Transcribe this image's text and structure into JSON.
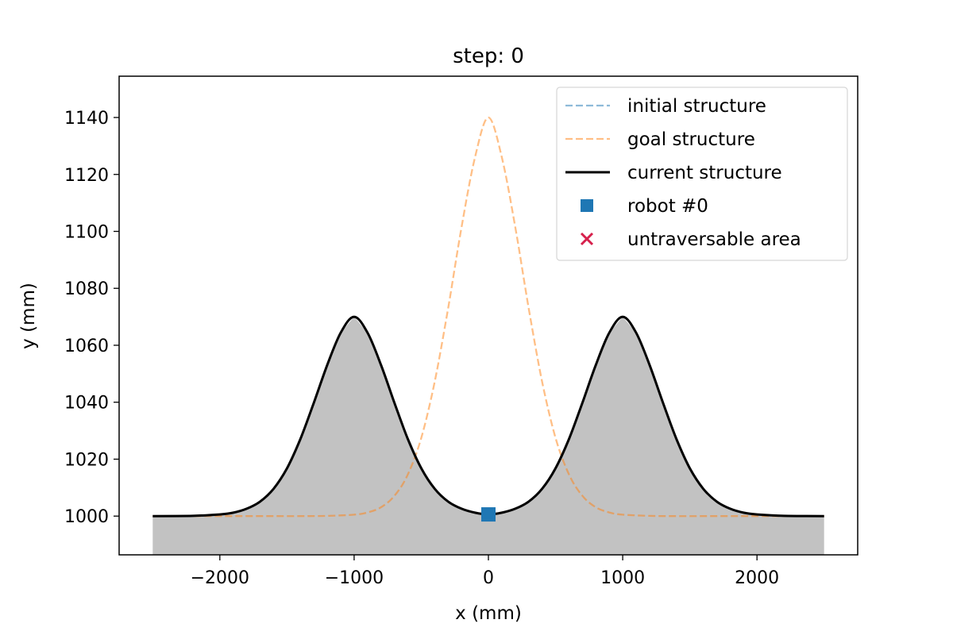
{
  "chart_data": {
    "type": "line",
    "title": "step: 0",
    "xlabel": "x (mm)",
    "ylabel": "y (mm)",
    "xlim": [
      -2750,
      2750
    ],
    "ylim": [
      986.4,
      1154.5
    ],
    "grid": false,
    "x_ticks": [
      -2000,
      -1000,
      0,
      1000,
      2000
    ],
    "x_tick_labels": [
      "−2000",
      "−1000",
      "0",
      "1000",
      "2000"
    ],
    "y_ticks": [
      1000,
      1020,
      1040,
      1060,
      1080,
      1100,
      1120,
      1140
    ],
    "y_tick_labels": [
      "1000",
      "1020",
      "1040",
      "1060",
      "1080",
      "1100",
      "1120",
      "1140"
    ],
    "legend_position": "top-right",
    "series": [
      {
        "name": "initial structure",
        "style": "dashed",
        "color": "#1f77b4",
        "x": [],
        "y": []
      },
      {
        "name": "goal structure",
        "style": "dashed",
        "color": "#ff7f0e",
        "x": [
          -2500,
          -2000,
          -1800,
          -1600,
          -1400,
          -1200,
          -1000,
          -900,
          -800,
          -700,
          -600,
          -500,
          -400,
          -300,
          -200,
          -100,
          0,
          100,
          200,
          300,
          400,
          500,
          600,
          700,
          800,
          900,
          1000,
          1200,
          1400,
          1600,
          1800,
          2000,
          2500
        ],
        "y": [
          1000,
          1000,
          1000,
          1000,
          1000,
          1000.1,
          1000.5,
          1001.3,
          1003.1,
          1007.1,
          1014.6,
          1027.5,
          1047.2,
          1073.0,
          1101.5,
          1126.0,
          1140,
          1126.0,
          1101.5,
          1073.0,
          1047.2,
          1027.5,
          1014.6,
          1007.1,
          1003.1,
          1001.3,
          1000.5,
          1000.1,
          1000,
          1000,
          1000,
          1000,
          1000
        ]
      },
      {
        "name": "current structure",
        "style": "solid",
        "color": "#000000",
        "x": [
          -2500,
          -2200,
          -2000,
          -1900,
          -1800,
          -1700,
          -1600,
          -1500,
          -1400,
          -1300,
          -1200,
          -1100,
          -1000,
          -900,
          -800,
          -700,
          -600,
          -500,
          -400,
          -300,
          -200,
          -100,
          0,
          100,
          200,
          300,
          400,
          500,
          600,
          700,
          800,
          900,
          1000,
          1100,
          1200,
          1300,
          1400,
          1500,
          1600,
          1700,
          1800,
          1900,
          2000,
          2200,
          2500
        ],
        "y": [
          1000,
          1000.1,
          1000.6,
          1001.2,
          1002.6,
          1005.1,
          1009.6,
          1016.8,
          1027.1,
          1039.8,
          1053.1,
          1064.4,
          1070,
          1064.4,
          1053.1,
          1039.8,
          1027.1,
          1016.8,
          1009.6,
          1005.1,
          1002.6,
          1001.2,
          1000.6,
          1001.2,
          1002.6,
          1005.1,
          1009.6,
          1016.8,
          1027.1,
          1039.8,
          1053.1,
          1064.4,
          1070,
          1064.4,
          1053.1,
          1039.8,
          1027.1,
          1016.8,
          1009.6,
          1005.1,
          1002.6,
          1001.2,
          1000.6,
          1000.1,
          1000
        ],
        "fill": "#c2c2c2"
      }
    ],
    "points": [
      {
        "name": "robot #0",
        "marker": "square",
        "color": "#1f77b4",
        "x": 0,
        "y": 1000.6
      },
      {
        "name": "untraversable area",
        "marker": "x",
        "color": "#d6204c",
        "x": null,
        "y": null
      }
    ],
    "legend": [
      {
        "label": "initial structure",
        "kind": "dashed-line",
        "color": "#1f77b4"
      },
      {
        "label": "goal structure",
        "kind": "dashed-line",
        "color": "#ff7f0e"
      },
      {
        "label": "current structure",
        "kind": "solid-line",
        "color": "#000000"
      },
      {
        "label": "robot #0",
        "kind": "square",
        "color": "#1f77b4"
      },
      {
        "label": "untraversable area",
        "kind": "x",
        "color": "#d6204c"
      }
    ]
  }
}
